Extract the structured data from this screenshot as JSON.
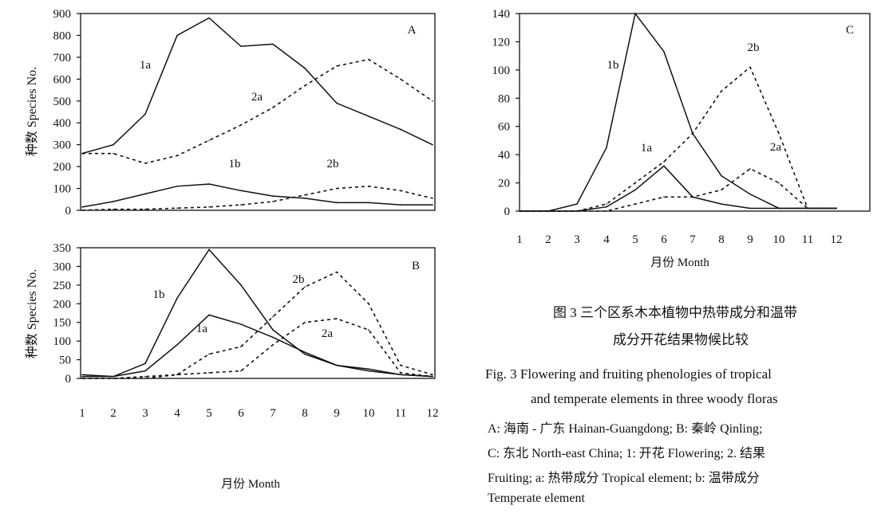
{
  "chart_data": [
    {
      "type": "line",
      "panel_label": "A",
      "ylabel": "种数 Species No.",
      "ylim": [
        0,
        900
      ],
      "yticks": [
        0,
        100,
        200,
        300,
        400,
        500,
        600,
        700,
        800,
        900
      ],
      "x": [
        1,
        2,
        3,
        4,
        5,
        6,
        7,
        8,
        9,
        10,
        11,
        12
      ],
      "series": [
        {
          "name": "1a",
          "style": "solid",
          "values": [
            260,
            300,
            440,
            800,
            880,
            750,
            760,
            650,
            490,
            430,
            370,
            300
          ]
        },
        {
          "name": "2a",
          "style": "dashed",
          "values": [
            260,
            260,
            215,
            250,
            320,
            390,
            470,
            570,
            660,
            690,
            600,
            500
          ]
        },
        {
          "name": "1b",
          "style": "solid",
          "values": [
            15,
            40,
            75,
            110,
            120,
            90,
            65,
            55,
            35,
            35,
            25,
            25
          ]
        },
        {
          "name": "2b",
          "style": "dashed",
          "values": [
            0,
            5,
            5,
            10,
            15,
            25,
            40,
            70,
            100,
            110,
            90,
            55
          ]
        }
      ]
    },
    {
      "type": "line",
      "panel_label": "B",
      "ylabel": "种数 Species No.",
      "xlabel": "月份 Month",
      "ylim": [
        0,
        350
      ],
      "yticks": [
        0,
        50,
        100,
        150,
        200,
        250,
        300,
        350
      ],
      "x": [
        1,
        2,
        3,
        4,
        5,
        6,
        7,
        8,
        9,
        10,
        11,
        12
      ],
      "xtick_labels": [
        "1",
        "2",
        "3",
        "4",
        "5",
        "6",
        "7",
        "8",
        "9",
        "10",
        "11",
        "12"
      ],
      "series": [
        {
          "name": "1b",
          "style": "solid",
          "values": [
            5,
            5,
            40,
            215,
            345,
            250,
            130,
            65,
            35,
            20,
            10,
            5
          ]
        },
        {
          "name": "1a",
          "style": "solid",
          "values": [
            10,
            5,
            20,
            90,
            170,
            145,
            110,
            70,
            35,
            25,
            10,
            5
          ]
        },
        {
          "name": "2b",
          "style": "dashed",
          "values": [
            0,
            0,
            0,
            10,
            65,
            85,
            165,
            245,
            285,
            200,
            35,
            10
          ]
        },
        {
          "name": "2a",
          "style": "dashed",
          "values": [
            0,
            0,
            5,
            10,
            15,
            20,
            90,
            150,
            160,
            130,
            15,
            5
          ]
        }
      ]
    },
    {
      "type": "line",
      "panel_label": "C",
      "xlabel": "月份 Month",
      "ylim": [
        0,
        140
      ],
      "yticks": [
        0,
        20,
        40,
        60,
        80,
        100,
        120,
        140
      ],
      "x": [
        1,
        2,
        3,
        4,
        5,
        6,
        7,
        8,
        9,
        10,
        11,
        12
      ],
      "xtick_labels": [
        "1",
        "2",
        "3",
        "4",
        "5",
        "6",
        "7",
        "8",
        "9",
        "10",
        "11",
        "12"
      ],
      "series": [
        {
          "name": "1b",
          "style": "solid",
          "values": [
            0,
            0,
            5,
            45,
            140,
            113,
            55,
            25,
            12,
            2,
            2,
            2
          ]
        },
        {
          "name": "2b",
          "style": "dashed",
          "values": [
            0,
            0,
            0,
            5,
            20,
            35,
            55,
            85,
            102,
            55,
            2,
            2
          ]
        },
        {
          "name": "1a",
          "style": "solid",
          "values": [
            0,
            0,
            0,
            3,
            15,
            32,
            10,
            5,
            2,
            2,
            2,
            2
          ]
        },
        {
          "name": "2a",
          "style": "dashed",
          "values": [
            0,
            0,
            0,
            0,
            5,
            10,
            10,
            15,
            30,
            20,
            2,
            2
          ]
        }
      ]
    }
  ],
  "caption": {
    "cn_line1": "图 3  三个区系木本植物中热带成分和温带",
    "cn_line2": "成分开花结果物候比较",
    "en_line1": "Fig. 3   Flowering and fruiting phenologies of tropical",
    "en_line2": "and temperate elements in three woody floras",
    "legend_line1": "A: 海南 - 广东 Hainan-Guangdong;    B: 秦岭 Qinling;",
    "legend_line2": "C: 东北 North-east China;   1: 开花 Flowering;  2. 结果",
    "legend_line3": "Fruiting;   a: 热带成分 Tropical element;   b: 温带成分",
    "legend_line4": "Temperate element"
  }
}
